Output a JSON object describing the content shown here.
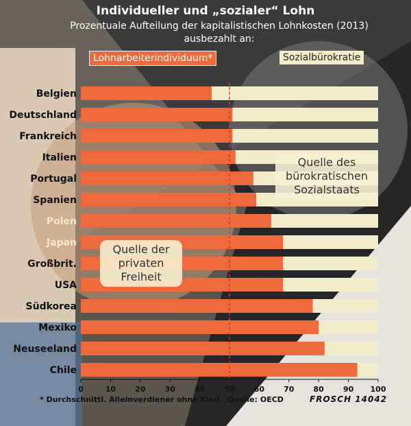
{
  "header": {
    "title": "Individueller und „sozialer“ Lohn",
    "subtitle_line1": "Prozentuale Aufteilung der kapitalistischen Lohnkosten  (2013)",
    "subtitle_line2": "ausbezahlt an:"
  },
  "legend": {
    "individual": "Lohnarbeiterindividuum*",
    "bureaucracy": "Sozialbürokratie"
  },
  "callouts": {
    "private": [
      "Quelle der",
      "privaten",
      "Freiheit"
    ],
    "bureaucratic": [
      "Quelle des",
      "bürokratischen",
      "Sozialstaats"
    ]
  },
  "footer": {
    "footnote": "* Durchschnittl. Alleinverdiener ohne Kind",
    "source": "Quelle: OECD",
    "signature": "FROSCH 14042"
  },
  "colors": {
    "individual": "#ee6a3c",
    "bureaucracy": "#f3eccb",
    "reference_line": "#d23a2a"
  },
  "chart_data": {
    "type": "bar",
    "orientation": "horizontal",
    "stacked": true,
    "categories": [
      "Belgien",
      "Deutschland",
      "Frankreich",
      "Italien",
      "Portugal",
      "Spanien",
      "Polen",
      "Japan",
      "Großbrit.",
      "USA",
      "Südkorea",
      "Mexiko",
      "Neuseeland",
      "Chile"
    ],
    "series": [
      {
        "name": "Lohnarbeiterindividuum*",
        "values": [
          44,
          51,
          51,
          52,
          58,
          59,
          64,
          68,
          68,
          68,
          78,
          80,
          82,
          93
        ]
      },
      {
        "name": "Sozialbürokratie",
        "values": [
          56,
          49,
          49,
          48,
          42,
          41,
          36,
          32,
          32,
          32,
          22,
          20,
          18,
          7
        ]
      }
    ],
    "xlim": [
      0,
      100
    ],
    "xticks": [
      0,
      10,
      20,
      30,
      40,
      50,
      60,
      70,
      80,
      90,
      100
    ],
    "reference_line": 50,
    "grid": false,
    "legend_position": "top"
  }
}
